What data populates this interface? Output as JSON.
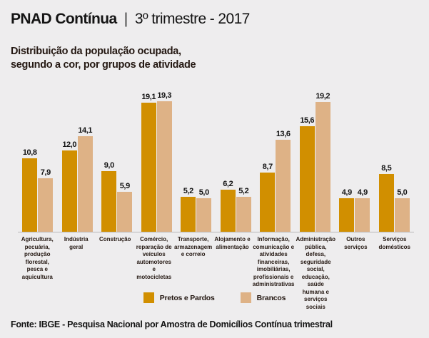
{
  "header": {
    "title_bold": "PNAD Contínua",
    "separator": "|",
    "title_rest": "3º trimestre - 2017"
  },
  "subtitle": "Distribuição da população ocupada,\nsegundo a cor, por grupos de atividade",
  "chart_data": {
    "type": "bar",
    "title": "Distribuição da população ocupada, segundo a cor, por grupos de atividade",
    "xlabel": "",
    "ylabel": "",
    "ylim": [
      0,
      20
    ],
    "grid": false,
    "legend_position": "bottom",
    "decimal_separator": ",",
    "background_color": "#eeedee",
    "axis_line_color": "#b9b7b9",
    "categories": [
      "Agricultura, pecuária, produção florestal, pesca e aquicultura",
      "Indústria geral",
      "Construção",
      "Comércio, reparação de veículos automotores e motocicletas",
      "Transporte, armazenagem e correio",
      "Alojamento e alimentação",
      "Informação, comunicação e atividades financeiras, imobiliárias, profissionais e administrativas",
      "Administração pública, defesa, seguridade social, educação, saúde humana e serviços sociais",
      "Outros serviços",
      "Serviços domésticos"
    ],
    "series": [
      {
        "name": "Pretos e Pardos",
        "color": "#d18f00",
        "values": [
          10.8,
          12.0,
          9.0,
          19.1,
          5.2,
          6.2,
          8.7,
          15.6,
          4.9,
          8.5
        ],
        "labels": [
          "10,8",
          "12,0",
          "9,0",
          "19,1",
          "5,2",
          "6,2",
          "8,7",
          "15,6",
          "4,9",
          "8,5"
        ]
      },
      {
        "name": "Brancos",
        "color": "#deb286",
        "values": [
          7.9,
          14.1,
          5.9,
          19.3,
          5.0,
          5.2,
          13.6,
          19.2,
          4.9,
          5.0
        ],
        "labels": [
          "7,9",
          "14,1",
          "5,9",
          "19,3",
          "5,0",
          "5,2",
          "13,6",
          "19,2",
          "4,9",
          "5,0"
        ]
      }
    ]
  },
  "footer": {
    "source": "Fonte: IBGE - Pesquisa Nacional por Amostra de Domicílios Contínua trimestral"
  }
}
